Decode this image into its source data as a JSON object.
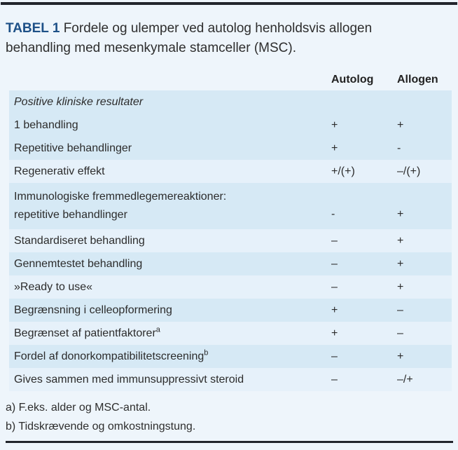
{
  "chart_data": {
    "type": "table",
    "caption_tag": "TABEL 1",
    "caption_text": "Fordele og ulemper ved autolog henholdsvis allogen behandling med mesenkymale stamceller (MSC).",
    "columns": [
      "Autolog",
      "Allogen"
    ],
    "rows": [
      {
        "label": "Positive kliniske resultater",
        "section_header": true,
        "autolog": "",
        "allogen": ""
      },
      {
        "label": "1 behandling",
        "autolog": "+",
        "allogen": "+"
      },
      {
        "label": "Repetitive behandlinger",
        "autolog": "+",
        "allogen": "-"
      },
      {
        "label": "Regenerativ effekt",
        "autolog": "+/(+)",
        "allogen": "–/(+)"
      },
      {
        "label": "Immunologiske fremmedlegemereaktioner:",
        "label2": "repetitive behandlinger",
        "autolog": "-",
        "allogen": "+"
      },
      {
        "label": "Standardiseret behandling",
        "autolog": "–",
        "allogen": "+"
      },
      {
        "label": "Gennemtestet behandling",
        "autolog": "–",
        "allogen": "+"
      },
      {
        "label": "»Ready to use«",
        "autolog": "–",
        "allogen": "+"
      },
      {
        "label": "Begrænsning i celleopformering",
        "autolog": "+",
        "allogen": "–"
      },
      {
        "label": "Begrænset af patientfaktorer",
        "sup": "a",
        "autolog": "+",
        "allogen": "–"
      },
      {
        "label": "Fordel af donorkompatibilitetscreening",
        "sup": "b",
        "autolog": "–",
        "allogen": "+"
      },
      {
        "label": "Gives sammen med immunsuppressivt steroid",
        "autolog": "–",
        "allogen": "–/+"
      }
    ],
    "footnotes": [
      "a) F.eks. alder og MSC-antal.",
      "b) Tidskrævende og omkostningstung."
    ]
  },
  "colors": {
    "page_background": "#eef5fb",
    "stripe_medium": "#d6e9f5",
    "stripe_light": "#e6f1fa",
    "accent_blue": "#1d5087",
    "rule": "#22252c",
    "text": "#2c2c2c"
  }
}
